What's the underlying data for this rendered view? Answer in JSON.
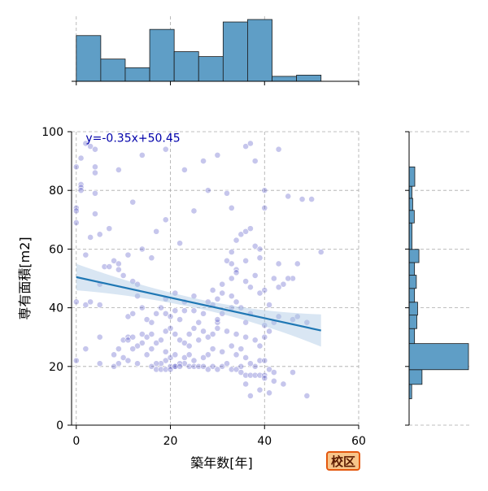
{
  "badge": {
    "label": "校区"
  },
  "chart_data": {
    "type": "scatter",
    "title": "",
    "xlabel": "築年数[年]",
    "ylabel": "専有面積[m2]",
    "xlim": [
      -1,
      60
    ],
    "ylim": [
      0,
      100
    ],
    "xticks": [
      0,
      20,
      40,
      60
    ],
    "yticks": [
      0,
      20,
      40,
      60,
      80,
      100
    ],
    "grid": true,
    "regression": {
      "equation": "y=-0.35x+50.45",
      "slope": -0.35,
      "intercept": 50.45,
      "x_range": [
        0,
        52
      ],
      "ci_band_at_x0": [
        46,
        55
      ],
      "ci_band_at_x52": [
        27,
        38
      ],
      "color": "#1f77b4",
      "band_color": "#aac8e4"
    },
    "points": [
      [
        2,
        96
      ],
      [
        3,
        95
      ],
      [
        4,
        94
      ],
      [
        1,
        91
      ],
      [
        4,
        88
      ],
      [
        4,
        86
      ],
      [
        9,
        87
      ],
      [
        1,
        82
      ],
      [
        1,
        81
      ],
      [
        4,
        79
      ],
      [
        12,
        76
      ],
      [
        0,
        74
      ],
      [
        0,
        73
      ],
      [
        4,
        72
      ],
      [
        0,
        69
      ],
      [
        7,
        67
      ],
      [
        19,
        70
      ],
      [
        3,
        64
      ],
      [
        5,
        65
      ],
      [
        14,
        92
      ],
      [
        19,
        94
      ],
      [
        23,
        87
      ],
      [
        27,
        90
      ],
      [
        30,
        92
      ],
      [
        28,
        80
      ],
      [
        32,
        79
      ],
      [
        33,
        74
      ],
      [
        36,
        95
      ],
      [
        37,
        96
      ],
      [
        38,
        90
      ],
      [
        43,
        94
      ],
      [
        40,
        74
      ],
      [
        40,
        80
      ],
      [
        48,
        77
      ],
      [
        50,
        77
      ],
      [
        45,
        78
      ],
      [
        25,
        73
      ],
      [
        17,
        66
      ],
      [
        22,
        62
      ],
      [
        16,
        57
      ],
      [
        14,
        60
      ],
      [
        11,
        58
      ],
      [
        8,
        56
      ],
      [
        9,
        55
      ],
      [
        6,
        54
      ],
      [
        7,
        54
      ],
      [
        9,
        53
      ],
      [
        10,
        51
      ],
      [
        12,
        49
      ],
      [
        13,
        48
      ],
      [
        5,
        48
      ],
      [
        0,
        42
      ],
      [
        2,
        41
      ],
      [
        5,
        41
      ],
      [
        3,
        42
      ],
      [
        11,
        37
      ],
      [
        12,
        38
      ],
      [
        14,
        40
      ],
      [
        19,
        43
      ],
      [
        21,
        45
      ],
      [
        23,
        42
      ],
      [
        25,
        44
      ],
      [
        29,
        46
      ],
      [
        31,
        48
      ],
      [
        33,
        50
      ],
      [
        34,
        53
      ],
      [
        32,
        56
      ],
      [
        33,
        59
      ],
      [
        34,
        63
      ],
      [
        35,
        65
      ],
      [
        36,
        66
      ],
      [
        37,
        67
      ],
      [
        38,
        61
      ],
      [
        39,
        60
      ],
      [
        39,
        57
      ],
      [
        36,
        56
      ],
      [
        33,
        55
      ],
      [
        34,
        52
      ],
      [
        36,
        49
      ],
      [
        38,
        51
      ],
      [
        37,
        47
      ],
      [
        39,
        45
      ],
      [
        40,
        46
      ],
      [
        42,
        50
      ],
      [
        43,
        55
      ],
      [
        44,
        48
      ],
      [
        41,
        41
      ],
      [
        43,
        37
      ],
      [
        42,
        35
      ],
      [
        40,
        34
      ],
      [
        41,
        32
      ],
      [
        40,
        30
      ],
      [
        36,
        35
      ],
      [
        37,
        38
      ],
      [
        35,
        40
      ],
      [
        34,
        42
      ],
      [
        33,
        40
      ],
      [
        33,
        44
      ],
      [
        31,
        38
      ],
      [
        30,
        35
      ],
      [
        32,
        32
      ],
      [
        34,
        31
      ],
      [
        36,
        30
      ],
      [
        38,
        29
      ],
      [
        39,
        27
      ],
      [
        35,
        26
      ],
      [
        33,
        27
      ],
      [
        31,
        25
      ],
      [
        29,
        26
      ],
      [
        28,
        24
      ],
      [
        27,
        23
      ],
      [
        25,
        22
      ],
      [
        23,
        21
      ],
      [
        22,
        21
      ],
      [
        21,
        20
      ],
      [
        20,
        20
      ],
      [
        19,
        22
      ],
      [
        18,
        21
      ],
      [
        17,
        21
      ],
      [
        16,
        20
      ],
      [
        17,
        19
      ],
      [
        18,
        19
      ],
      [
        19,
        19
      ],
      [
        20,
        19
      ],
      [
        21,
        20
      ],
      [
        22,
        20
      ],
      [
        24,
        20
      ],
      [
        25,
        20
      ],
      [
        26,
        20
      ],
      [
        27,
        20
      ],
      [
        28,
        19
      ],
      [
        29,
        20
      ],
      [
        30,
        19
      ],
      [
        31,
        20
      ],
      [
        32,
        21
      ],
      [
        33,
        19
      ],
      [
        34,
        19
      ],
      [
        35,
        18
      ],
      [
        36,
        17
      ],
      [
        37,
        17
      ],
      [
        38,
        17
      ],
      [
        39,
        17
      ],
      [
        40,
        17
      ],
      [
        41,
        19
      ],
      [
        42,
        18
      ],
      [
        38,
        20
      ],
      [
        37,
        21
      ],
      [
        39,
        22
      ],
      [
        40,
        22
      ],
      [
        36,
        23
      ],
      [
        34,
        24
      ],
      [
        35,
        20
      ],
      [
        36,
        14
      ],
      [
        37,
        10
      ],
      [
        39,
        12
      ],
      [
        41,
        11
      ],
      [
        40,
        16
      ],
      [
        42,
        15
      ],
      [
        44,
        14
      ],
      [
        46,
        18
      ],
      [
        49,
        10
      ],
      [
        46,
        36
      ],
      [
        47,
        37
      ],
      [
        49,
        35
      ],
      [
        52,
        59
      ],
      [
        47,
        55
      ],
      [
        46,
        50
      ],
      [
        45,
        50
      ],
      [
        43,
        47
      ],
      [
        14,
        31
      ],
      [
        15,
        30
      ],
      [
        16,
        31
      ],
      [
        14,
        28
      ],
      [
        13,
        27
      ],
      [
        12,
        26
      ],
      [
        11,
        30
      ],
      [
        10,
        29
      ],
      [
        9,
        26
      ],
      [
        8,
        24
      ],
      [
        9,
        21
      ],
      [
        10,
        23
      ],
      [
        11,
        22
      ],
      [
        13,
        21
      ],
      [
        15,
        24
      ],
      [
        16,
        26
      ],
      [
        17,
        28
      ],
      [
        18,
        29
      ],
      [
        19,
        32
      ],
      [
        20,
        33
      ],
      [
        21,
        31
      ],
      [
        22,
        29
      ],
      [
        23,
        28
      ],
      [
        24,
        27
      ],
      [
        24,
        31
      ],
      [
        25,
        33
      ],
      [
        26,
        29
      ],
      [
        28,
        30
      ],
      [
        29,
        31
      ],
      [
        30,
        33
      ],
      [
        19,
        25
      ],
      [
        20,
        23
      ],
      [
        21,
        24
      ],
      [
        23,
        23
      ],
      [
        24,
        24
      ],
      [
        5,
        30
      ],
      [
        5,
        21
      ],
      [
        8,
        20
      ],
      [
        0,
        22
      ],
      [
        2,
        26
      ],
      [
        13,
        44
      ],
      [
        15,
        36
      ],
      [
        16,
        35
      ],
      [
        17,
        38
      ],
      [
        18,
        40
      ],
      [
        19,
        38
      ],
      [
        20,
        37
      ],
      [
        21,
        39
      ],
      [
        22,
        36
      ],
      [
        23,
        39
      ],
      [
        26,
        35
      ],
      [
        27,
        32
      ],
      [
        29,
        41
      ],
      [
        30,
        43
      ],
      [
        31,
        45
      ],
      [
        30,
        36
      ],
      [
        27,
        38
      ],
      [
        25,
        39
      ],
      [
        28,
        42
      ],
      [
        2,
        58
      ],
      [
        0,
        88
      ],
      [
        1,
        80
      ],
      [
        11,
        29
      ],
      [
        12,
        30
      ]
    ],
    "point_color": "#3333bb",
    "top_histogram": {
      "bin_edges": [
        0,
        5.2,
        10.4,
        15.6,
        20.8,
        26,
        31.2,
        36.4,
        41.6,
        46.8,
        52
      ],
      "counts": [
        37,
        18,
        11,
        42,
        24,
        20,
        48,
        50,
        4,
        5
      ],
      "color": "#5f9ec6"
    },
    "right_histogram": {
      "bin_edges": [
        9,
        13.9,
        18.9,
        27.8,
        32.9,
        37.5,
        41.9,
        46.6,
        51.1,
        55.4,
        59.9,
        68.9,
        73.2,
        77.3,
        81.4,
        88
      ],
      "counts": [
        10,
        50,
        230,
        21,
        30,
        33,
        21,
        28,
        21,
        38,
        11,
        20,
        14,
        11,
        22
      ],
      "color": "#5f9ec6"
    }
  }
}
